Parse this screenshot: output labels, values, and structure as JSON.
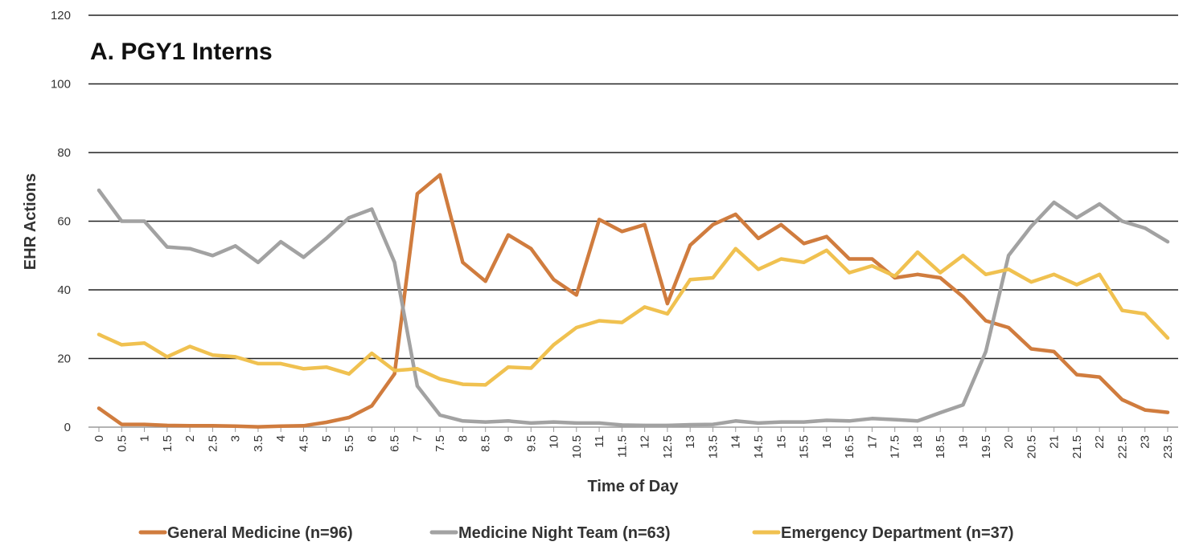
{
  "chart_data": {
    "type": "line",
    "title": "A. PGY1 Interns",
    "xlabel": "Time of Day",
    "ylabel": "EHR Actions",
    "ylim": [
      0,
      120
    ],
    "yticks": [
      0,
      20,
      40,
      60,
      80,
      100,
      120
    ],
    "grid": "horizontal",
    "legend_position": "bottom",
    "categories": [
      "0",
      "0.5",
      "1",
      "1.5",
      "2",
      "2.5",
      "3",
      "3.5",
      "4",
      "4.5",
      "5",
      "5.5",
      "6",
      "6.5",
      "7",
      "7.5",
      "8",
      "8.5",
      "9",
      "9.5",
      "10",
      "10.5",
      "11",
      "11.5",
      "12",
      "12.5",
      "13",
      "13.5",
      "14",
      "14.5",
      "15",
      "15.5",
      "16",
      "16.5",
      "17",
      "17.5",
      "18",
      "18.5",
      "19",
      "19.5",
      "20",
      "20.5",
      "21",
      "21.5",
      "22",
      "22.5",
      "23",
      "23.5"
    ],
    "series": [
      {
        "name": "General Medicine (n=96)",
        "color": "#D07C3E",
        "values": [
          5.5,
          0.8,
          0.8,
          0.5,
          0.4,
          0.4,
          0.3,
          0.1,
          0.3,
          0.4,
          1.4,
          2.8,
          6.2,
          15.5,
          68,
          73.5,
          48,
          42.5,
          56,
          52,
          43,
          38.5,
          60.5,
          57,
          59,
          36,
          53,
          59,
          62,
          55,
          59,
          53.5,
          55.5,
          49,
          49,
          43.5,
          44.5,
          43.5,
          38,
          31,
          29,
          22.8,
          22,
          15.3,
          14.6,
          8,
          5,
          4.3
        ]
      },
      {
        "name": "Medicine Night Team (n=63)",
        "color": "#A2A2A2",
        "values": [
          69,
          60,
          60,
          52.5,
          52,
          50,
          52.8,
          48,
          54,
          49.5,
          55,
          61,
          63.5,
          48,
          12,
          3.5,
          1.8,
          1.5,
          1.8,
          1.2,
          1.5,
          1.2,
          1.2,
          0.6,
          0.5,
          0.5,
          0.7,
          0.8,
          1.8,
          1.2,
          1.5,
          1.5,
          2,
          1.8,
          2.5,
          2.2,
          1.8,
          4.2,
          6.5,
          22,
          50,
          58.5,
          65.5,
          61,
          65,
          60,
          58,
          54
        ]
      },
      {
        "name": "Emergency Department (n=37)",
        "color": "#F0C150",
        "values": [
          27,
          24,
          24.5,
          20.5,
          23.5,
          21,
          20.5,
          18.5,
          18.5,
          17,
          17.5,
          15.5,
          21.5,
          16.5,
          17,
          14,
          12.5,
          12.3,
          17.5,
          17.2,
          24,
          29,
          31,
          30.5,
          35,
          33,
          43,
          43.5,
          52,
          46,
          49,
          48,
          51.5,
          45,
          47,
          44,
          51,
          45,
          50,
          44.5,
          46,
          42.3,
          44.5,
          41.5,
          44.5,
          34,
          33,
          26
        ]
      }
    ]
  }
}
